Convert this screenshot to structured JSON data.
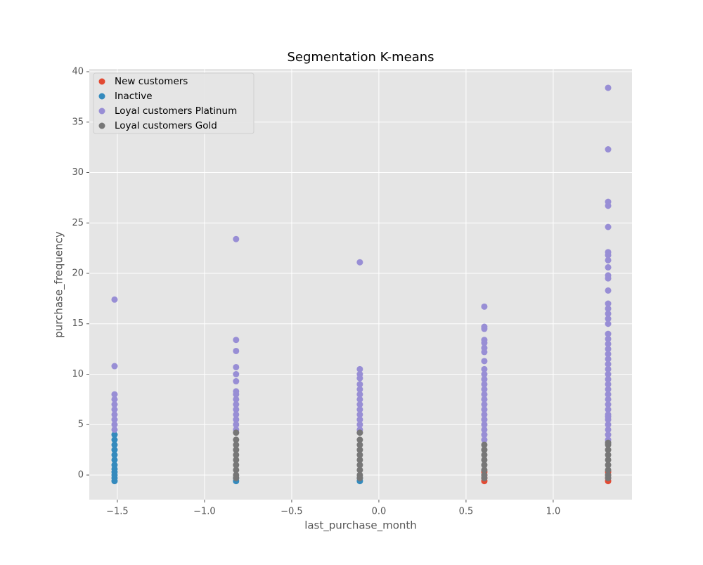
{
  "chart_data": {
    "type": "scatter",
    "title": "Segmentation K-means",
    "x_label": "last_purchase_month",
    "y_label": "purchase_frequency",
    "xlim": [
      -1.661,
      1.452
    ],
    "ylim": [
      -2.44,
      40.28
    ],
    "xticks": [
      {
        "value": -1.5,
        "label": "−1.5"
      },
      {
        "value": -1.0,
        "label": "−1.0"
      },
      {
        "value": -0.5,
        "label": "−0.5"
      },
      {
        "value": 0,
        "label": "0.0"
      },
      0.5,
      {
        "value": 1.0,
        "label": "1.0"
      }
    ],
    "yticks": [
      0,
      5,
      10,
      15,
      20,
      25,
      30,
      35,
      40
    ],
    "grid": true,
    "legend": "upper left",
    "series": [
      {
        "name": "New customers",
        "color": "#E24A33",
        "x": [
          0.605,
          0.605,
          0.605,
          0.605,
          1.315,
          1.315,
          1.315,
          1.315
        ],
        "values": [
          -0.6,
          -0.3,
          0,
          0.3,
          -0.6,
          -0.3,
          0,
          0.3
        ]
      },
      {
        "name": "Inactive",
        "color": "#348ABD",
        "x": [
          -1.516,
          -1.516,
          -1.516,
          -1.516,
          -1.516,
          -1.516,
          -1.516,
          -1.516,
          -1.516,
          -1.516,
          -1.516,
          -1.516,
          -0.819,
          -0.819,
          -0.109,
          -0.109
        ],
        "values": [
          -0.6,
          -0.3,
          0,
          0.3,
          0.6,
          1,
          1.5,
          2,
          2.5,
          3,
          3.5,
          4,
          -0.6,
          -0.3,
          -0.6,
          -0.3
        ]
      },
      {
        "name": "Loyal customers Platinum",
        "color": "#988ED5",
        "x": [
          -1.516,
          -1.516,
          -1.516,
          -1.516,
          -1.516,
          -1.516,
          -1.516,
          -1.516,
          -1.516,
          -1.516,
          -0.819,
          -0.819,
          -0.819,
          -0.819,
          -0.819,
          -0.819,
          -0.819,
          -0.819,
          -0.819,
          -0.819,
          -0.819,
          -0.819,
          -0.819,
          -0.819,
          -0.819,
          -0.109,
          -0.109,
          -0.109,
          -0.109,
          -0.109,
          -0.109,
          -0.109,
          -0.109,
          -0.109,
          -0.109,
          -0.109,
          -0.109,
          -0.109,
          -0.109,
          0.605,
          0.605,
          0.605,
          0.605,
          0.605,
          0.605,
          0.605,
          0.605,
          0.605,
          0.605,
          0.605,
          0.605,
          0.605,
          0.605,
          0.605,
          0.605,
          0.605,
          0.605,
          0.605,
          0.605,
          0.605,
          0.605,
          0.605,
          1.315,
          1.315,
          1.315,
          1.315,
          1.315,
          1.315,
          1.315,
          1.315,
          1.315,
          1.315,
          1.315,
          1.315,
          1.315,
          1.315,
          1.315,
          1.315,
          1.315,
          1.315,
          1.315,
          1.315,
          1.315,
          1.315,
          1.315,
          1.315,
          1.315,
          1.315,
          1.315,
          1.315,
          1.315,
          1.315,
          1.315,
          1.315,
          1.315,
          1.315,
          1.315,
          1.315,
          1.315,
          1.315,
          1.315,
          1.315
        ],
        "values": [
          4.5,
          5,
          5.5,
          6,
          6.5,
          7,
          7.5,
          8,
          10.8,
          17.4,
          4.5,
          5,
          5.5,
          6,
          6.5,
          7,
          7.5,
          8,
          8.3,
          9.3,
          10,
          10.7,
          12.3,
          13.4,
          23.4,
          4.5,
          5,
          5.5,
          6,
          6.5,
          7,
          7.5,
          8,
          8.5,
          9,
          9.6,
          10,
          10.5,
          21.1,
          3.5,
          4,
          4.5,
          5,
          5.5,
          6,
          6.5,
          7,
          7.5,
          8,
          8.5,
          9,
          9.5,
          10,
          10.5,
          11.3,
          12.2,
          12.6,
          13.1,
          13.4,
          14.5,
          14.7,
          16.7,
          3.5,
          4,
          4.5,
          5,
          5.5,
          6,
          6.5,
          7,
          7.5,
          8,
          8.5,
          9,
          9.5,
          10,
          10.5,
          11,
          11.5,
          12,
          12.5,
          13,
          13.5,
          14,
          15,
          15.5,
          16,
          16.5,
          17,
          18.3,
          19.5,
          19.8,
          20.6,
          21.3,
          21.8,
          22.1,
          24.6,
          26.7,
          27.1,
          32.3,
          38.4,
          5.8
        ]
      },
      {
        "name": "Loyal customers Gold",
        "color": "#777777",
        "x": [
          -0.819,
          -0.819,
          -0.819,
          -0.819,
          -0.819,
          -0.819,
          -0.819,
          -0.819,
          -0.819,
          -0.819,
          -0.109,
          -0.109,
          -0.109,
          -0.109,
          -0.109,
          -0.109,
          -0.109,
          -0.109,
          -0.109,
          -0.109,
          0.605,
          0.605,
          0.605,
          0.605,
          0.605,
          0.605,
          0.605,
          0.605,
          1.315,
          1.315,
          1.315,
          1.315,
          1.315,
          1.315,
          1.315,
          1.315,
          1.315
        ],
        "values": [
          -0.3,
          0,
          0.5,
          1,
          1.5,
          2,
          2.5,
          3,
          3.5,
          4.2,
          -0.3,
          0,
          0.5,
          1,
          1.5,
          2,
          2.5,
          3,
          3.5,
          4.2,
          -0.3,
          0,
          0.5,
          1,
          1.5,
          2,
          2.5,
          3,
          -0.3,
          0,
          0.5,
          1,
          1.5,
          2,
          2.5,
          3,
          3.2
        ]
      }
    ]
  }
}
